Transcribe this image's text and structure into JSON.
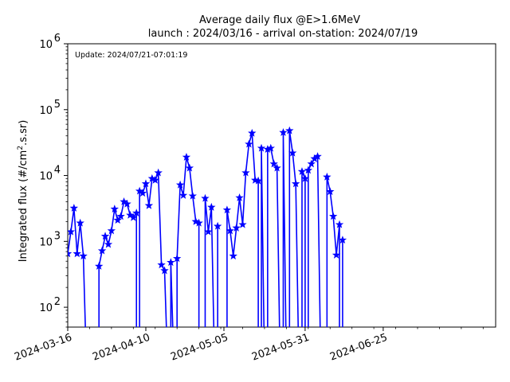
{
  "chart_data": {
    "type": "line",
    "title": "Average daily flux @E>1.6MeV",
    "subtitle": "launch : 2024/03/16 - arrival on-station: 2024/07/19",
    "update_text": "Update: 2024/07/21-07:01:19",
    "ylabel_main": "Integrated flux (#/cm",
    "ylabel_sup": "2",
    "ylabel_tail": ".s.sr)",
    "yscale": "log",
    "ylim": [
      50,
      1000000
    ],
    "xlim": [
      "2024-03-16",
      "2024-07-31"
    ],
    "x_ticks": [
      "2024-03-16",
      "2024-04-10",
      "2024-05-05",
      "2024-05-31",
      "2024-06-25"
    ],
    "y_ticks": [
      {
        "value": 100,
        "mantissa": "10",
        "exp": "2"
      },
      {
        "value": 1000,
        "mantissa": "10",
        "exp": "3"
      },
      {
        "value": 10000,
        "mantissa": "10",
        "exp": "4"
      },
      {
        "value": 100000,
        "mantissa": "10",
        "exp": "5"
      },
      {
        "value": 1000000,
        "mantissa": "10",
        "exp": "6"
      }
    ],
    "grid": false,
    "line_color": "#0000ff",
    "series": [
      {
        "points": [
          [
            "2024-03-16",
            650
          ],
          [
            "2024-03-17",
            1400
          ],
          [
            "2024-03-18",
            3200
          ],
          [
            "2024-03-19",
            650
          ],
          [
            "2024-03-20",
            1900
          ],
          [
            "2024-03-21",
            600
          ],
          [
            "2024-03-22",
            0
          ],
          [
            "2024-03-26",
            0
          ],
          [
            "2024-03-26",
            420
          ],
          [
            "2024-03-27",
            720
          ],
          [
            "2024-03-28",
            1200
          ],
          [
            "2024-03-29",
            900
          ],
          [
            "2024-03-30",
            1450
          ],
          [
            "2024-03-31",
            3100
          ],
          [
            "2024-04-01",
            2100
          ],
          [
            "2024-04-02",
            2400
          ],
          [
            "2024-04-03",
            4000
          ],
          [
            "2024-04-04",
            3700
          ],
          [
            "2024-04-05",
            2500
          ],
          [
            "2024-04-06",
            2300
          ],
          [
            "2024-04-07",
            2700
          ],
          [
            "2024-04-07",
            0
          ],
          [
            "2024-04-08",
            0
          ],
          [
            "2024-04-08",
            5800
          ],
          [
            "2024-04-09",
            5400
          ],
          [
            "2024-04-10",
            7500
          ],
          [
            "2024-04-11",
            3500
          ],
          [
            "2024-04-12",
            9000
          ],
          [
            "2024-04-13",
            8500
          ],
          [
            "2024-04-14",
            11000
          ],
          [
            "2024-04-15",
            440
          ],
          [
            "2024-04-16",
            360
          ],
          [
            "2024-04-17",
            0
          ],
          [
            "2024-04-18",
            0
          ],
          [
            "2024-04-18",
            480
          ],
          [
            "2024-04-19",
            0
          ],
          [
            "2024-04-20",
            0
          ],
          [
            "2024-04-20",
            550
          ],
          [
            "2024-04-21",
            7200
          ],
          [
            "2024-04-22",
            5000
          ],
          [
            "2024-04-23",
            19000
          ],
          [
            "2024-04-24",
            13000
          ],
          [
            "2024-04-25",
            4900
          ],
          [
            "2024-04-26",
            2000
          ],
          [
            "2024-04-27",
            1900
          ],
          [
            "2024-04-27",
            0
          ],
          [
            "2024-04-29",
            0
          ],
          [
            "2024-04-29",
            4500
          ],
          [
            "2024-04-30",
            1400
          ],
          [
            "2024-05-01",
            3300
          ],
          [
            "2024-05-02",
            0
          ],
          [
            "2024-05-03",
            0
          ],
          [
            "2024-05-03",
            1700
          ],
          [
            "2024-05-03",
            0
          ],
          [
            "2024-05-06",
            0
          ],
          [
            "2024-05-06",
            3000
          ],
          [
            "2024-05-07",
            1450
          ],
          [
            "2024-05-08",
            600
          ],
          [
            "2024-05-09",
            1600
          ],
          [
            "2024-05-10",
            4600
          ],
          [
            "2024-05-11",
            1800
          ],
          [
            "2024-05-12",
            11000
          ],
          [
            "2024-05-13",
            30000
          ],
          [
            "2024-05-14",
            44000
          ],
          [
            "2024-05-15",
            8500
          ],
          [
            "2024-05-16",
            8300
          ],
          [
            "2024-05-16",
            0
          ],
          [
            "2024-05-17",
            0
          ],
          [
            "2024-05-17",
            26000
          ],
          [
            "2024-05-18",
            0
          ],
          [
            "2024-05-19",
            0
          ],
          [
            "2024-05-19",
            25000
          ],
          [
            "2024-05-20",
            26000
          ],
          [
            "2024-05-21",
            15000
          ],
          [
            "2024-05-22",
            13000
          ],
          [
            "2024-05-23",
            0
          ],
          [
            "2024-05-24",
            0
          ],
          [
            "2024-05-24",
            45000
          ],
          [
            "2024-05-25",
            0
          ],
          [
            "2024-05-26",
            0
          ],
          [
            "2024-05-26",
            48000
          ],
          [
            "2024-05-27",
            22000
          ],
          [
            "2024-05-28",
            7500
          ],
          [
            "2024-05-29",
            0
          ],
          [
            "2024-05-30",
            0
          ],
          [
            "2024-05-30",
            11500
          ],
          [
            "2024-05-31",
            9000
          ],
          [
            "2024-05-31",
            0
          ],
          [
            "2024-06-01",
            0
          ],
          [
            "2024-06-01",
            12000
          ],
          [
            "2024-06-02",
            15000
          ],
          [
            "2024-06-03",
            18000
          ],
          [
            "2024-06-04",
            19500
          ],
          [
            "2024-06-05",
            0
          ],
          [
            "2024-06-07",
            0
          ],
          [
            "2024-06-07",
            9500
          ],
          [
            "2024-06-08",
            5700
          ],
          [
            "2024-06-09",
            2400
          ],
          [
            "2024-06-10",
            620
          ],
          [
            "2024-06-11",
            1800
          ],
          [
            "2024-06-11",
            0
          ],
          [
            "2024-06-12",
            0
          ],
          [
            "2024-06-12",
            1050
          ]
        ]
      }
    ]
  }
}
